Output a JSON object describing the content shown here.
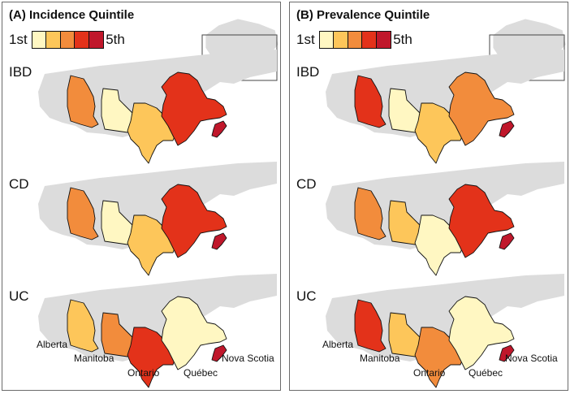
{
  "colors": {
    "q1": "#fff7c2",
    "q2": "#fdc65a",
    "q3": "#f28c3c",
    "q4": "#e3321a",
    "q5": "#c0172b",
    "background_land": "#dcdcdc",
    "border": "#111111"
  },
  "legend": {
    "low_label": "1st",
    "high_label": "5th"
  },
  "row_labels": [
    "IBD",
    "CD",
    "UC"
  ],
  "province_labels": {
    "alberta": "Alberta",
    "manitoba": "Manitoba",
    "ontario": "Ontario",
    "quebec": "Québec",
    "nova_scotia": "Nova Scotia"
  },
  "panels": [
    {
      "title": "(A) Incidence Quintile",
      "rows": [
        {
          "disease": "IBD",
          "alberta": 3,
          "manitoba": 1,
          "ontario": 2,
          "quebec": 4,
          "nova_scotia": 5
        },
        {
          "disease": "CD",
          "alberta": 3,
          "manitoba": 1,
          "ontario": 2,
          "quebec": 4,
          "nova_scotia": 5
        },
        {
          "disease": "UC",
          "alberta": 2,
          "manitoba": 3,
          "ontario": 4,
          "quebec": 1,
          "nova_scotia": 5
        }
      ]
    },
    {
      "title": "(B) Prevalence Quintile",
      "rows": [
        {
          "disease": "IBD",
          "alberta": 4,
          "manitoba": 1,
          "ontario": 2,
          "quebec": 3,
          "nova_scotia": 5
        },
        {
          "disease": "CD",
          "alberta": 3,
          "manitoba": 2,
          "ontario": 1,
          "quebec": 4,
          "nova_scotia": 5
        },
        {
          "disease": "UC",
          "alberta": 4,
          "manitoba": 2,
          "ontario": 3,
          "quebec": 1,
          "nova_scotia": 5
        }
      ]
    }
  ]
}
